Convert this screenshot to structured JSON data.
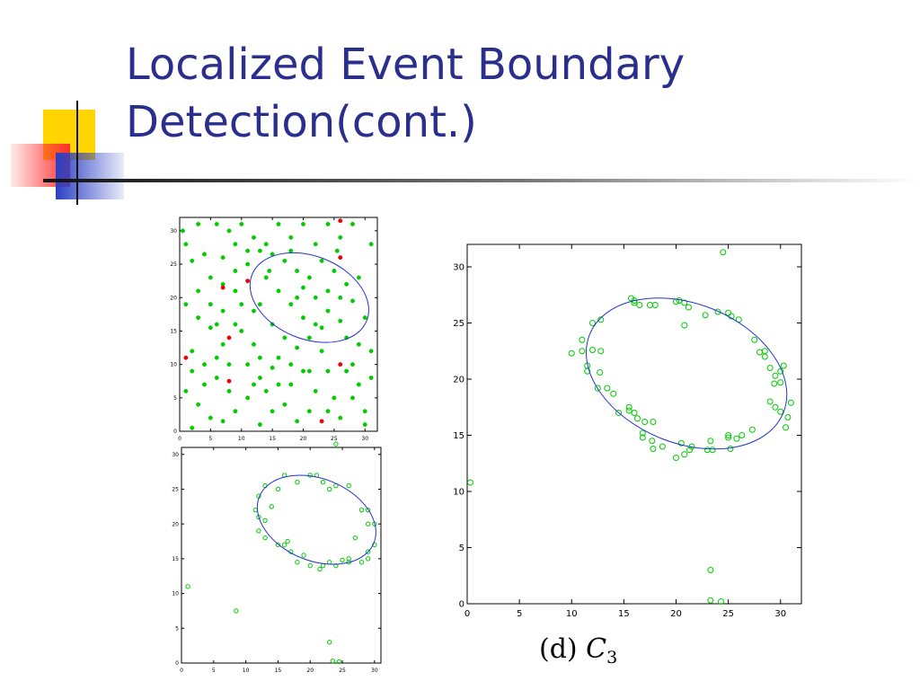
{
  "slide": {
    "title_line1": "Localized Event Boundary",
    "title_line2": "Detection(cont.)",
    "caption_label": "(d)",
    "caption_symbol": "C",
    "caption_subscript": "3"
  },
  "colors": {
    "title": "#2a2e8c",
    "green_point": "#00cc00",
    "red_point": "#ee0000",
    "ellipse": "#2233cc",
    "deco_yellow": "#ffd400",
    "deco_red": "#ff3030",
    "deco_blue": "#2b3fc4"
  },
  "chart_data": [
    {
      "type": "scatter",
      "title": "",
      "xlabel": "",
      "ylabel": "",
      "xlim": [
        0,
        32
      ],
      "ylim": [
        0,
        32
      ],
      "x_ticks": [
        0,
        5,
        10,
        15,
        20,
        25,
        30
      ],
      "y_ticks": [
        0,
        5,
        10,
        15,
        20,
        25,
        30
      ],
      "grid": false,
      "ellipse": {
        "cx": 21,
        "cy": 20,
        "rx": 10,
        "ry": 6.2,
        "angle_deg": -22
      },
      "series": [
        {
          "marker": "filled-dot",
          "color": "green",
          "points": [
            [
              0.5,
              30
            ],
            [
              1,
              28
            ],
            [
              3,
              31
            ],
            [
              2,
              25.5
            ],
            [
              4,
              26.5
            ],
            [
              6,
              31
            ],
            [
              8,
              30
            ],
            [
              10,
              31
            ],
            [
              12,
              29
            ],
            [
              5,
              23
            ],
            [
              7,
              22
            ],
            [
              9,
              24
            ],
            [
              11,
              27
            ],
            [
              1,
              19
            ],
            [
              3,
              17
            ],
            [
              5,
              15.5
            ],
            [
              2,
              12
            ],
            [
              4,
              10
            ],
            [
              6,
              8
            ],
            [
              8,
              6
            ],
            [
              1,
              6
            ],
            [
              3,
              4
            ],
            [
              5,
              2
            ],
            [
              7,
              1.5
            ],
            [
              2,
              0.5
            ],
            [
              10,
              15
            ],
            [
              12,
              13
            ],
            [
              11,
              10
            ],
            [
              13,
              8
            ],
            [
              14,
              6
            ],
            [
              15,
              3
            ],
            [
              13,
              1
            ],
            [
              16,
              11
            ],
            [
              18,
              7
            ],
            [
              17,
              4
            ],
            [
              19,
              1.5
            ],
            [
              20,
              9
            ],
            [
              22,
              6
            ],
            [
              21,
              3
            ],
            [
              23,
              12
            ],
            [
              24,
              9
            ],
            [
              25,
              5
            ],
            [
              26,
              2
            ],
            [
              27,
              14
            ],
            [
              28,
              10
            ],
            [
              29,
              7
            ],
            [
              30,
              3
            ],
            [
              31,
              12
            ],
            [
              30,
              17
            ],
            [
              29,
              23
            ],
            [
              31,
              28
            ],
            [
              28,
              31
            ],
            [
              26,
              29
            ],
            [
              24,
              31
            ],
            [
              22,
              28
            ],
            [
              20,
              31
            ],
            [
              18,
              29
            ],
            [
              16,
              31
            ],
            [
              14,
              28
            ],
            [
              15,
              26.5
            ],
            [
              17,
              25.5
            ],
            [
              19,
              24
            ],
            [
              21,
              23
            ],
            [
              23,
              25.5
            ],
            [
              25,
              24
            ],
            [
              27,
              22
            ],
            [
              16,
              21
            ],
            [
              18,
              19
            ],
            [
              20,
              17
            ],
            [
              22,
              16
            ],
            [
              24,
              18
            ],
            [
              26,
              16.5
            ],
            [
              28,
              19.5
            ],
            [
              14,
              23
            ],
            [
              13,
              19
            ],
            [
              12,
              18
            ],
            [
              10,
              19
            ],
            [
              9,
              16
            ],
            [
              7,
              13
            ],
            [
              6,
              16
            ],
            [
              15,
              16
            ],
            [
              17,
              14
            ],
            [
              19,
              12.5
            ],
            [
              21,
              14
            ],
            [
              23,
              15.5
            ],
            [
              11,
              5
            ],
            [
              9,
              3
            ],
            [
              13,
              11
            ],
            [
              15,
              9.5
            ],
            [
              3,
              21
            ],
            [
              5,
              19
            ],
            [
              7,
              18
            ],
            [
              9,
              21
            ],
            [
              27,
              9
            ],
            [
              29,
              13
            ],
            [
              31,
              8
            ],
            [
              24,
              3
            ],
            [
              28,
              5
            ],
            [
              30,
              1
            ],
            [
              19,
              20
            ],
            [
              20,
              21.5
            ],
            [
              22,
              20
            ],
            [
              24,
              21
            ],
            [
              26,
              20
            ],
            [
              14.5,
              24
            ],
            [
              25.5,
              27
            ],
            [
              18,
              27
            ],
            [
              8,
              10
            ],
            [
              6,
              11
            ],
            [
              4,
              7
            ],
            [
              2,
              9
            ],
            [
              12,
              7
            ],
            [
              16,
              7
            ],
            [
              18,
              10
            ],
            [
              21,
              9
            ],
            [
              11,
              25
            ],
            [
              13,
              27
            ],
            [
              9,
              28
            ],
            [
              7,
              26
            ]
          ]
        },
        {
          "marker": "filled-dot",
          "color": "red",
          "points": [
            [
              26,
              31.5
            ],
            [
              7,
              21.5
            ],
            [
              11,
              22.5
            ],
            [
              8,
              14
            ],
            [
              1,
              11
            ],
            [
              8,
              7.5
            ],
            [
              26,
              10
            ],
            [
              23,
              1.5
            ],
            [
              26,
              26
            ]
          ]
        }
      ]
    },
    {
      "type": "scatter",
      "title": "",
      "xlabel": "",
      "ylabel": "",
      "xlim": [
        0,
        31
      ],
      "ylim": [
        0,
        31
      ],
      "x_ticks": [
        0,
        5,
        10,
        15,
        20,
        25,
        30
      ],
      "y_ticks": [
        0,
        5,
        10,
        15,
        20,
        25,
        30
      ],
      "grid": false,
      "ellipse": {
        "cx": 21,
        "cy": 20.6,
        "rx": 9.6,
        "ry": 5.9,
        "angle_deg": -22
      },
      "series": [
        {
          "marker": "open-circle",
          "color": "green",
          "points": [
            [
              1,
              11
            ],
            [
              8.5,
              7.5
            ],
            [
              23,
              3
            ],
            [
              23.5,
              0.3
            ],
            [
              24.5,
              0.2
            ],
            [
              24,
              31.5
            ],
            [
              11.5,
              22
            ],
            [
              12,
              24
            ],
            [
              13,
              25.5
            ],
            [
              15,
              25
            ],
            [
              16,
              27
            ],
            [
              18,
              26
            ],
            [
              20,
              27
            ],
            [
              21,
              27
            ],
            [
              22,
              26
            ],
            [
              23,
              25
            ],
            [
              24,
              25.5
            ],
            [
              26,
              25.5
            ],
            [
              28,
              22
            ],
            [
              29,
              20
            ],
            [
              30,
              17
            ],
            [
              29,
              15
            ],
            [
              28,
              14.5
            ],
            [
              26,
              15
            ],
            [
              24,
              14
            ],
            [
              22,
              14
            ],
            [
              20,
              14
            ],
            [
              18,
              14.5
            ],
            [
              16,
              17
            ],
            [
              15,
              17
            ],
            [
              13,
              18
            ],
            [
              12,
              19
            ],
            [
              12,
              21
            ],
            [
              13,
              20.5
            ],
            [
              27,
              18
            ],
            [
              29,
              22
            ],
            [
              30,
              20
            ],
            [
              17,
              16
            ],
            [
              19,
              15.5
            ],
            [
              25,
              14.8
            ],
            [
              14,
              22.5
            ],
            [
              21.5,
              13.5
            ],
            [
              23,
              14.5
            ],
            [
              26,
              14.5
            ],
            [
              29,
              16
            ],
            [
              16.5,
              17.5
            ]
          ]
        }
      ]
    },
    {
      "type": "scatter",
      "title": "",
      "xlabel": "",
      "ylabel": "",
      "xlim": [
        0,
        32
      ],
      "ylim": [
        0,
        32
      ],
      "x_ticks": [
        0,
        5,
        10,
        15,
        20,
        25,
        30
      ],
      "y_ticks": [
        0,
        5,
        10,
        15,
        20,
        25,
        30
      ],
      "grid": false,
      "ellipse": {
        "cx": 21,
        "cy": 20.5,
        "rx": 10,
        "ry": 6.2,
        "angle_deg": -22
      },
      "series": [
        {
          "marker": "open-circle",
          "color": "green",
          "points": [
            [
              0.3,
              10.8
            ],
            [
              24.5,
              31.3
            ],
            [
              23.3,
              3
            ],
            [
              23.3,
              0.3
            ],
            [
              24.3,
              0.2
            ],
            [
              10,
              22.3
            ],
            [
              11,
              22.5
            ],
            [
              11,
              23.5
            ],
            [
              12,
              25
            ],
            [
              12.8,
              25.3
            ],
            [
              12,
              22.6
            ],
            [
              12.8,
              22.5
            ],
            [
              11.5,
              21.2
            ],
            [
              11.5,
              20.7
            ],
            [
              12.7,
              20.6
            ],
            [
              12.5,
              19.2
            ],
            [
              13.4,
              19.2
            ],
            [
              14,
              18.7
            ],
            [
              14.5,
              17
            ],
            [
              15.5,
              17.2
            ],
            [
              16,
              17
            ],
            [
              15.5,
              17.5
            ],
            [
              16.3,
              16.5
            ],
            [
              17,
              16.2
            ],
            [
              17.8,
              16.2
            ],
            [
              16.8,
              15.2
            ],
            [
              16.8,
              14.8
            ],
            [
              17.7,
              14.5
            ],
            [
              17.8,
              13.8
            ],
            [
              18.7,
              14
            ],
            [
              20,
              13
            ],
            [
              20.5,
              14.3
            ],
            [
              20.8,
              13.3
            ],
            [
              21.3,
              13.7
            ],
            [
              21.5,
              14
            ],
            [
              23,
              13.7
            ],
            [
              23.3,
              14.5
            ],
            [
              23.5,
              13.7
            ],
            [
              25,
              15
            ],
            [
              25,
              14.8
            ],
            [
              25.2,
              13.8
            ],
            [
              25.8,
              14.7
            ],
            [
              26.3,
              15
            ],
            [
              27.3,
              15.5
            ],
            [
              29,
              18
            ],
            [
              29.5,
              17.5
            ],
            [
              30,
              17.1
            ],
            [
              30.5,
              15.7
            ],
            [
              30.7,
              16.6
            ],
            [
              31,
              17.9
            ],
            [
              30,
              19.7
            ],
            [
              29.4,
              19.6
            ],
            [
              29.5,
              20.3
            ],
            [
              30,
              20.7
            ],
            [
              30.3,
              21.2
            ],
            [
              29,
              21
            ],
            [
              28.5,
              22.5
            ],
            [
              28.5,
              22
            ],
            [
              27.5,
              23.5
            ],
            [
              28,
              22.4
            ],
            [
              26,
              25.3
            ],
            [
              25.3,
              25.6
            ],
            [
              25,
              25.9
            ],
            [
              24,
              26
            ],
            [
              22.8,
              25.7
            ],
            [
              21.2,
              26.4
            ],
            [
              20.8,
              26.8
            ],
            [
              20.3,
              27
            ],
            [
              20,
              26.9
            ],
            [
              18,
              26.6
            ],
            [
              17.5,
              26.6
            ],
            [
              16.5,
              26.6
            ],
            [
              16,
              26.8
            ],
            [
              15.7,
              27.2
            ],
            [
              16,
              27
            ],
            [
              20.8,
              24.8
            ]
          ]
        }
      ]
    }
  ]
}
